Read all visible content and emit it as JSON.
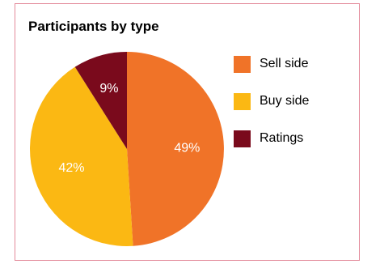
{
  "chart_data": {
    "type": "pie",
    "title": "Participants by type",
    "slices": [
      {
        "label": "Sell side",
        "value": 49,
        "display": "49%",
        "color": "#f07328"
      },
      {
        "label": "Buy side",
        "value": 42,
        "display": "42%",
        "color": "#fbb813"
      },
      {
        "label": "Ratings",
        "value": 9,
        "display": "9%",
        "color": "#7a0a1c"
      }
    ],
    "legend": "right",
    "legend_items": [
      "Sell side",
      "Buy side",
      "Ratings"
    ]
  }
}
